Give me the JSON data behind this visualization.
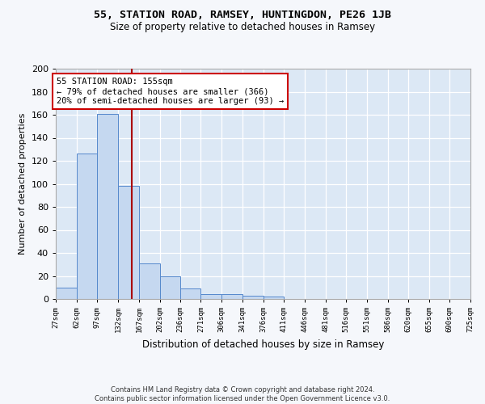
{
  "title1": "55, STATION ROAD, RAMSEY, HUNTINGDON, PE26 1JB",
  "title2": "Size of property relative to detached houses in Ramsey",
  "xlabel": "Distribution of detached houses by size in Ramsey",
  "ylabel": "Number of detached properties",
  "bin_edges": [
    27,
    62,
    97,
    132,
    167,
    202,
    236,
    271,
    306,
    341,
    376,
    411,
    446,
    481,
    516,
    551,
    586,
    620,
    655,
    690,
    725
  ],
  "bin_counts": [
    10,
    126,
    161,
    98,
    31,
    20,
    9,
    4,
    4,
    3,
    2,
    0,
    0,
    0,
    0,
    0,
    0,
    0,
    0,
    0
  ],
  "bar_color": "#c5d8f0",
  "bar_edgecolor": "#5588cc",
  "property_size": 155,
  "vline_color": "#aa0000",
  "annotation_line1": "55 STATION ROAD: 155sqm",
  "annotation_line2": "← 79% of detached houses are smaller (366)",
  "annotation_line3": "20% of semi-detached houses are larger (93) →",
  "annotation_box_color": "#ffffff",
  "annotation_box_edgecolor": "#cc0000",
  "ylim": [
    0,
    200
  ],
  "yticks": [
    0,
    20,
    40,
    60,
    80,
    100,
    120,
    140,
    160,
    180,
    200
  ],
  "tick_labels": [
    "27sqm",
    "62sqm",
    "97sqm",
    "132sqm",
    "167sqm",
    "202sqm",
    "236sqm",
    "271sqm",
    "306sqm",
    "341sqm",
    "376sqm",
    "411sqm",
    "446sqm",
    "481sqm",
    "516sqm",
    "551sqm",
    "586sqm",
    "620sqm",
    "655sqm",
    "690sqm",
    "725sqm"
  ],
  "background_color": "#dce8f5",
  "fig_background_color": "#f5f7fb",
  "footer_text": "Contains HM Land Registry data © Crown copyright and database right 2024.\nContains public sector information licensed under the Open Government Licence v3.0.",
  "grid_color": "#ffffff",
  "title1_fontsize": 9.5,
  "title2_fontsize": 8.5
}
